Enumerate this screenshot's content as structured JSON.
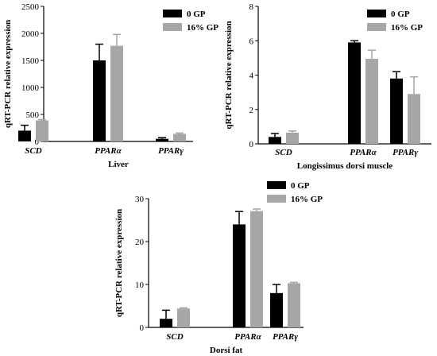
{
  "colors": {
    "series_0gp": "#000000",
    "series_16gp": "#a6a6a6",
    "axis": "#000000"
  },
  "chart_data": [
    {
      "type": "bar",
      "panel": "liver",
      "xlabel": "Liver",
      "ylabel": "qRT-PCR relative expression",
      "ylim": [
        0,
        2500
      ],
      "yticks": [
        "0",
        "500",
        "1000",
        "1500",
        "2000",
        "2500"
      ],
      "categories": [
        "SCD",
        "PPARα",
        "PPARγ"
      ],
      "legend_position": "top-right",
      "series": [
        {
          "name": "0 GP",
          "values": [
            200,
            1500,
            50
          ],
          "errors": [
            100,
            300,
            20
          ]
        },
        {
          "name": "16% GP",
          "values": [
            390,
            1770,
            140
          ],
          "errors": [
            15,
            210,
            15
          ]
        }
      ]
    },
    {
      "type": "bar",
      "panel": "muscle",
      "xlabel": "Longissimus dorsi muscle",
      "ylabel": "qRT-PCR relative expression",
      "ylim": [
        0,
        8
      ],
      "yticks": [
        "0",
        "2",
        "4",
        "6",
        "8"
      ],
      "categories": [
        "SCD",
        "PPARα",
        "PPARγ"
      ],
      "legend_position": "top-right",
      "series": [
        {
          "name": "0 GP",
          "values": [
            0.4,
            5.9,
            3.8
          ],
          "errors": [
            0.2,
            0.1,
            0.4
          ]
        },
        {
          "name": "16% GP",
          "values": [
            0.65,
            4.95,
            2.9
          ],
          "errors": [
            0.1,
            0.5,
            1.0
          ]
        }
      ]
    },
    {
      "type": "bar",
      "panel": "fat",
      "xlabel": "Dorsi fat",
      "ylabel": "qRT-PCR relative expression",
      "ylim": [
        0,
        30
      ],
      "yticks": [
        "0",
        "10",
        "20",
        "30"
      ],
      "categories": [
        "SCD",
        "PPARα",
        "PPARγ"
      ],
      "legend_position": "top-right",
      "series": [
        {
          "name": "0 GP",
          "values": [
            2,
            24,
            8
          ],
          "errors": [
            2,
            3,
            2
          ]
        },
        {
          "name": "16% GP",
          "values": [
            4.4,
            27.1,
            10.3
          ],
          "errors": [
            0.15,
            0.5,
            0.2
          ]
        }
      ]
    }
  ]
}
